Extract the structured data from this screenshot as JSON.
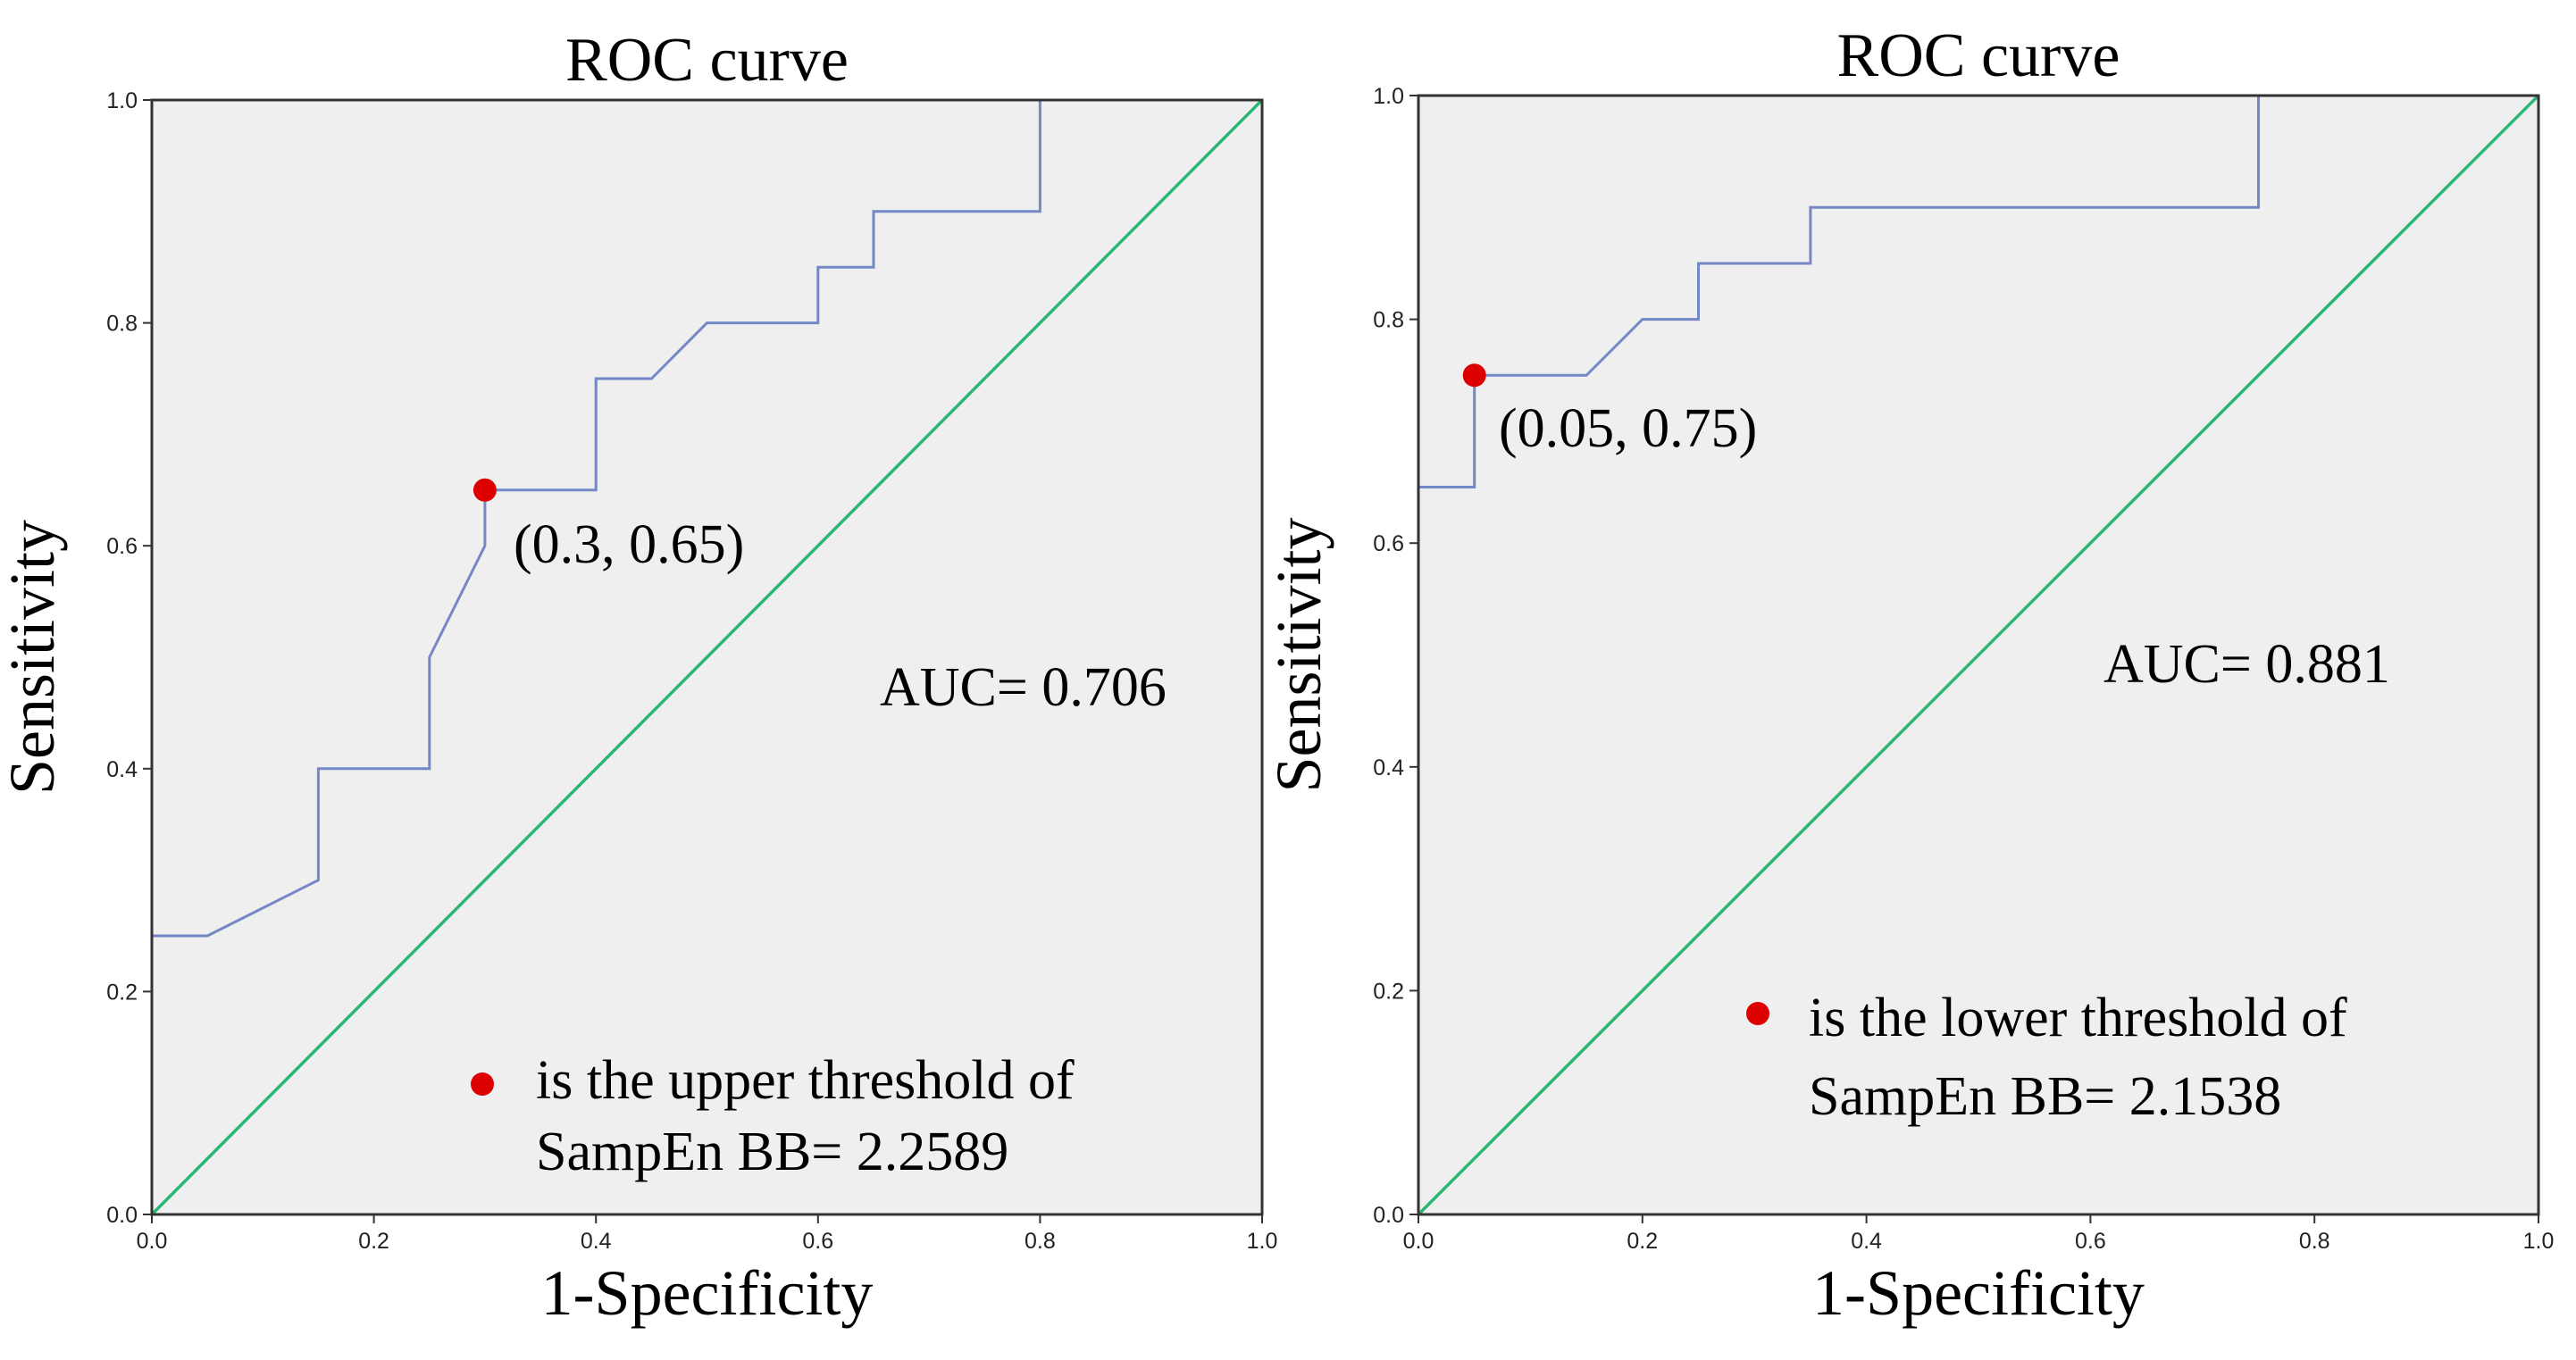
{
  "chart_data": [
    {
      "type": "line",
      "title": "ROC curve",
      "xlabel": "1-Specificity",
      "ylabel": "Sensitivity",
      "xlim": [
        0,
        1
      ],
      "ylim": [
        0,
        1
      ],
      "x_ticks": [
        "0.0",
        "0.2",
        "0.4",
        "0.6",
        "0.8",
        "1.0"
      ],
      "y_ticks": [
        "0.0",
        "0.2",
        "0.4",
        "0.6",
        "0.8",
        "1.0"
      ],
      "series": [
        {
          "name": "ROC",
          "color": "#7388c5",
          "points": [
            [
              0,
              0
            ],
            [
              0,
              0.25
            ],
            [
              0.05,
              0.25
            ],
            [
              0.15,
              0.3
            ],
            [
              0.15,
              0.4
            ],
            [
              0.25,
              0.4
            ],
            [
              0.25,
              0.5
            ],
            [
              0.3,
              0.6
            ],
            [
              0.3,
              0.65
            ],
            [
              0.4,
              0.65
            ],
            [
              0.4,
              0.75
            ],
            [
              0.45,
              0.75
            ],
            [
              0.5,
              0.8
            ],
            [
              0.6,
              0.8
            ],
            [
              0.6,
              0.85
            ],
            [
              0.65,
              0.85
            ],
            [
              0.65,
              0.9
            ],
            [
              0.8,
              0.9
            ],
            [
              0.8,
              1.0
            ],
            [
              1.0,
              1.0
            ]
          ]
        },
        {
          "name": "Reference line",
          "color": "#2bb673",
          "points": [
            [
              0,
              0
            ],
            [
              1,
              1
            ]
          ]
        }
      ],
      "marker": {
        "x": 0.3,
        "y": 0.65,
        "color": "#dd0000"
      },
      "annotations": {
        "point_label": "(0.3, 0.65)",
        "auc": "AUC= 0.706",
        "legend_line1": "is the upper threshold of",
        "legend_line2": "SampEn BB= 2.2589"
      }
    },
    {
      "type": "line",
      "title": "ROC curve",
      "xlabel": "1-Specificity",
      "ylabel": "Sensitivity",
      "xlim": [
        0,
        1
      ],
      "ylim": [
        0,
        1
      ],
      "x_ticks": [
        "0.0",
        "0.2",
        "0.4",
        "0.6",
        "0.8",
        "1.0"
      ],
      "y_ticks": [
        "0.0",
        "0.2",
        "0.4",
        "0.6",
        "0.8",
        "1.0"
      ],
      "series": [
        {
          "name": "ROC",
          "color": "#7388c5",
          "points": [
            [
              0,
              0
            ],
            [
              0,
              0.65
            ],
            [
              0.05,
              0.65
            ],
            [
              0.05,
              0.75
            ],
            [
              0.15,
              0.75
            ],
            [
              0.2,
              0.8
            ],
            [
              0.25,
              0.8
            ],
            [
              0.25,
              0.85
            ],
            [
              0.35,
              0.85
            ],
            [
              0.35,
              0.9
            ],
            [
              0.75,
              0.9
            ],
            [
              0.75,
              1.0
            ],
            [
              1.0,
              1.0
            ]
          ]
        },
        {
          "name": "Reference line",
          "color": "#2bb673",
          "points": [
            [
              0,
              0
            ],
            [
              1,
              1
            ]
          ]
        }
      ],
      "marker": {
        "x": 0.05,
        "y": 0.75,
        "color": "#dd0000"
      },
      "annotations": {
        "point_label": "(0.05, 0.75)",
        "auc": "AUC= 0.881",
        "legend_line1": "is the lower threshold of",
        "legend_line2": "SampEn BB= 2.1538"
      }
    }
  ]
}
